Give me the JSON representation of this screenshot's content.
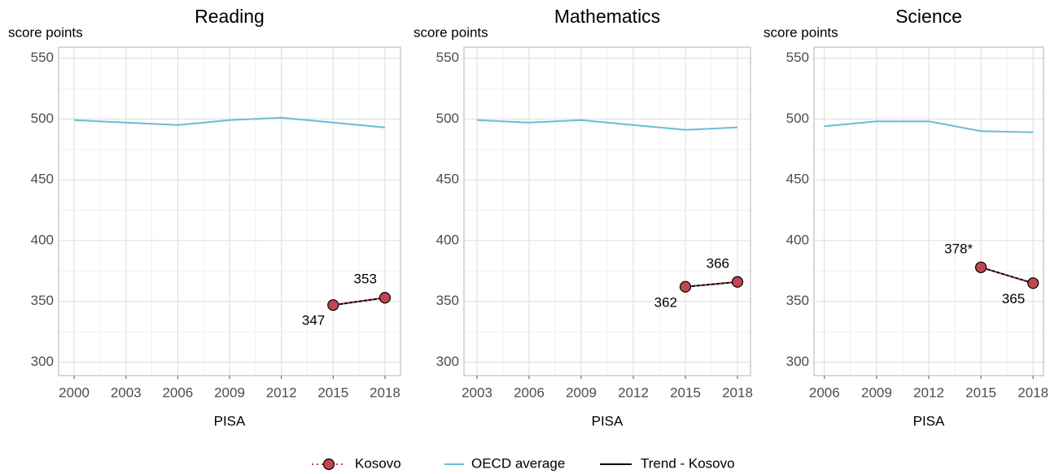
{
  "chart_data": [
    {
      "type": "line",
      "title": "Reading",
      "y_label": "score points",
      "x_label": "PISA",
      "x": [
        2000,
        2003,
        2006,
        2009,
        2012,
        2015,
        2018
      ],
      "xlim": [
        1999.1,
        2018.9
      ],
      "xticks": [
        2000,
        2003,
        2006,
        2009,
        2012,
        2015,
        2018
      ],
      "ylim": [
        289,
        559
      ],
      "yticks": [
        300,
        350,
        400,
        450,
        500,
        550
      ],
      "grid": true,
      "series": [
        {
          "name": "Kosovo",
          "color": "#c0474f",
          "values": [
            null,
            null,
            null,
            null,
            null,
            347,
            353
          ]
        },
        {
          "name": "OECD average",
          "color": "#6bbbd8",
          "values": [
            499,
            497,
            495,
            499,
            501,
            497,
            493
          ]
        },
        {
          "name": "Trend - Kosovo",
          "color": "#000000",
          "values": [
            null,
            null,
            null,
            null,
            null,
            347,
            353
          ]
        }
      ]
    },
    {
      "type": "line",
      "title": "Mathematics",
      "y_label": "score points",
      "x_label": "PISA",
      "x": [
        2003,
        2006,
        2009,
        2012,
        2015,
        2018
      ],
      "xlim": [
        2002.25,
        2018.75
      ],
      "xticks": [
        2003,
        2006,
        2009,
        2012,
        2015,
        2018
      ],
      "ylim": [
        289,
        559
      ],
      "yticks": [
        300,
        350,
        400,
        450,
        500,
        550
      ],
      "grid": true,
      "series": [
        {
          "name": "Kosovo",
          "color": "#c0474f",
          "values": [
            null,
            null,
            null,
            null,
            362,
            366
          ]
        },
        {
          "name": "OECD average",
          "color": "#6bbbd8",
          "values": [
            499,
            497,
            499,
            495,
            491,
            493
          ]
        },
        {
          "name": "Trend - Kosovo",
          "color": "#000000",
          "values": [
            null,
            null,
            null,
            null,
            362,
            366
          ]
        }
      ]
    },
    {
      "type": "line",
      "title": "Science",
      "y_label": "score points",
      "x_label": "PISA",
      "x": [
        2006,
        2009,
        2012,
        2015,
        2018
      ],
      "xlim": [
        2005.4,
        2018.6
      ],
      "xticks": [
        2006,
        2009,
        2012,
        2015,
        2018
      ],
      "ylim": [
        289,
        559
      ],
      "yticks": [
        300,
        350,
        400,
        450,
        500,
        550
      ],
      "grid": true,
      "series": [
        {
          "name": "Kosovo",
          "color": "#c0474f",
          "values": [
            null,
            null,
            null,
            378,
            365
          ],
          "value_labels": [
            null,
            null,
            null,
            "378*",
            "365"
          ]
        },
        {
          "name": "OECD average",
          "color": "#6bbbd8",
          "values": [
            494,
            498,
            498,
            490,
            489
          ]
        },
        {
          "name": "Trend - Kosovo",
          "color": "#000000",
          "values": [
            null,
            null,
            null,
            378,
            365
          ]
        }
      ]
    }
  ]
}
